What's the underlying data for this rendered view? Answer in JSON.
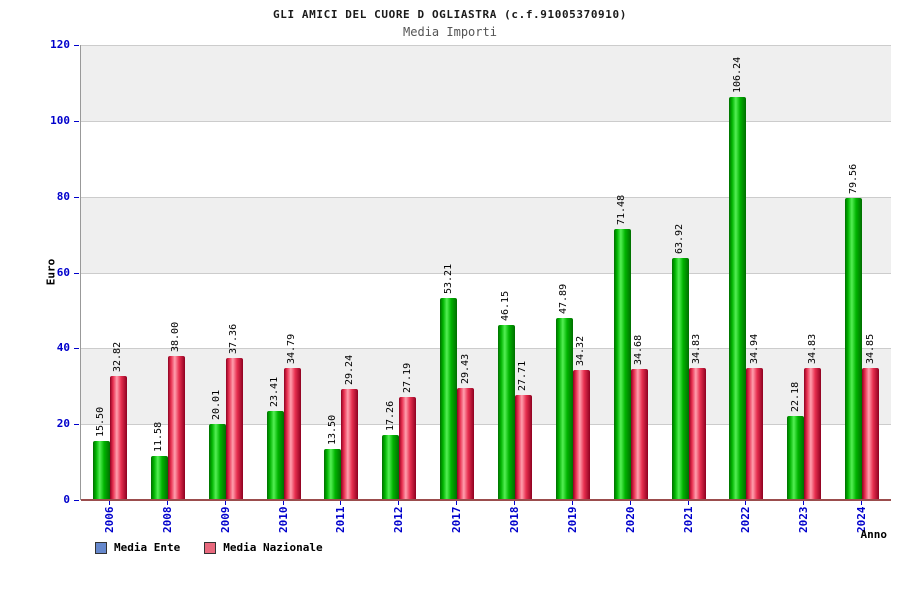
{
  "header": {
    "title": "GLI AMICI DEL CUORE D OGLIASTRA (c.f.91005370910)",
    "subtitle": "Media Importi"
  },
  "axes": {
    "y_title": "Euro",
    "x_title": "Anno",
    "tick_color": "#0000cc"
  },
  "legend": {
    "items": [
      {
        "label": "Media Ente",
        "swatch_color": "#6688cc"
      },
      {
        "label": "Media Nazionale",
        "swatch_color": "#e8697d"
      }
    ]
  },
  "colors": {
    "band_gray": "#efefef",
    "gridline": "#cccccc",
    "bar_green": "#00c800",
    "bar_red": "#e83050",
    "axis_text_blue": "#0000cc"
  },
  "chart_data": {
    "type": "bar",
    "title": "GLI AMICI DEL CUORE D OGLIASTRA (c.f.91005370910)",
    "subtitle": "Media Importi",
    "xlabel": "Anno",
    "ylabel": "Euro",
    "ylim": [
      0,
      120
    ],
    "yticks": [
      0,
      20,
      40,
      60,
      80,
      100,
      120
    ],
    "grid": "horizontal",
    "legend_position": "bottom-left",
    "value_label_decimals": 2,
    "categories": [
      "2006",
      "2008",
      "2009",
      "2010",
      "2011",
      "2012",
      "2017",
      "2018",
      "2019",
      "2020",
      "2021",
      "2022",
      "2023",
      "2024"
    ],
    "series": [
      {
        "name": "Media Ente",
        "bar_color": "#00c800",
        "values": [
          15.5,
          11.58,
          20.01,
          23.41,
          13.5,
          17.26,
          53.21,
          46.15,
          47.89,
          71.48,
          63.92,
          106.24,
          22.18,
          79.56
        ]
      },
      {
        "name": "Media Nazionale",
        "bar_color": "#e83050",
        "values": [
          32.82,
          38.0,
          37.36,
          34.79,
          29.24,
          27.19,
          29.43,
          27.71,
          34.32,
          34.68,
          34.83,
          34.94,
          34.83,
          34.85
        ]
      }
    ]
  }
}
